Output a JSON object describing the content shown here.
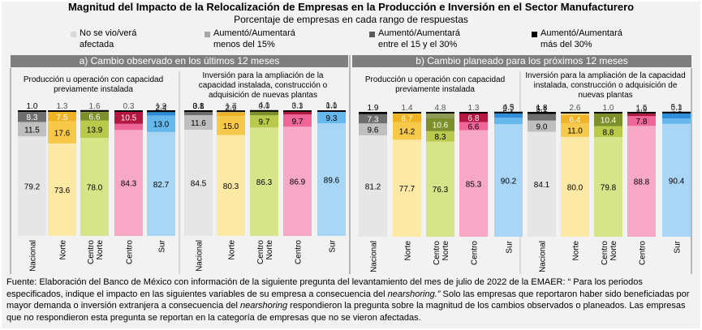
{
  "title": "Magnitud del Impacto de la Relocalización de Empresas en la Producción e Inversión en el Sector Manufacturero",
  "subtitle": "Porcentaje de empresas en cada rango de respuestas",
  "legend": [
    {
      "label": "No se vio/verá\nafectada",
      "color": "#d9d9d9"
    },
    {
      "label": "Aumentó/Aumentará\nmenos del 15%",
      "color": "#a6a6a6"
    },
    {
      "label": "Aumentó/Aumentará\nentre el 15 y el 30%",
      "color": "#595959"
    },
    {
      "label": "Aumentó/Aumentará\nmás del 30%",
      "color": "#000000"
    }
  ],
  "sections": [
    {
      "label": "a) Cambio observado en los últimos 12 meses"
    },
    {
      "label": "b) Cambio planeado para los próximos 12 meses"
    }
  ],
  "colors": {
    "Nacional": [
      "#e6e6e6",
      "#bfbfbf",
      "#6e6e6e",
      "#1a1a1a"
    ],
    "Norte": [
      "#fde9a6",
      "#f6c94a",
      "#f0b323",
      "#f3d27a"
    ],
    "Centro Norte": [
      "#d6e58a",
      "#b8c94b",
      "#7d8f2a",
      "#8c9c55"
    ],
    "Centro": [
      "#f7a8c7",
      "#ef6597",
      "#b3173f",
      "#6e1026"
    ],
    "Sur": [
      "#a9d6f5",
      "#66b7ec",
      "#2e8fd8",
      "#1f6fa8"
    ]
  },
  "chart_data": [
    {
      "type": "bar",
      "stacked": true,
      "title": "Producción u operación con capacidad previamente instalada",
      "categories": [
        "Nacional",
        "Norte",
        "Centro Norte",
        "Centro",
        "Sur"
      ],
      "series": [
        {
          "name": "No se vio/verá afectada",
          "values": [
            79.2,
            73.6,
            78.0,
            84.3,
            82.7
          ]
        },
        {
          "name": "Aumentó/Aumentará menos del 15%",
          "values": [
            11.5,
            17.6,
            13.9,
            4.9,
            13.0
          ]
        },
        {
          "name": "Aumentó/Aumentará entre el 15 y el 30%",
          "values": [
            8.3,
            7.5,
            6.6,
            10.5,
            2.4
          ]
        },
        {
          "name": "Aumentó/Aumentará más del 30%",
          "values": [
            1.0,
            1.3,
            1.6,
            0.3,
            1.9
          ]
        }
      ],
      "ylim": [
        0,
        100
      ]
    },
    {
      "type": "bar",
      "stacked": true,
      "title": "Inversión para la ampliación de la capacidad instalada, construcción o adquisición de nuevas plantas",
      "categories": [
        "Nacional",
        "Norte",
        "Centro Norte",
        "Centro",
        "Sur"
      ],
      "series": [
        {
          "name": "No se vio/verá afectada",
          "values": [
            84.5,
            80.3,
            86.3,
            86.9,
            89.6
          ]
        },
        {
          "name": "Aumentó/Aumentará menos del 15%",
          "values": [
            11.6,
            15.0,
            9.7,
            9.7,
            9.3
          ]
        },
        {
          "name": "Aumentó/Aumentará entre el 15 y el 30%",
          "values": [
            3.1,
            2.9,
            4.1,
            3.1,
            1.1
          ]
        },
        {
          "name": "Aumentó/Aumentará más del 30%",
          "values": [
            0.8,
            1.7,
            0.0,
            0.3,
            0.0
          ]
        }
      ],
      "ylim": [
        0,
        100
      ]
    },
    {
      "type": "bar",
      "stacked": true,
      "title": "Producción u operación con capacidad previamente instalada",
      "categories": [
        "Nacional",
        "Norte",
        "Centro Norte",
        "Centro",
        "Sur"
      ],
      "series": [
        {
          "name": "No se vio/verá afectada",
          "values": [
            81.2,
            77.7,
            76.3,
            85.3,
            90.2
          ]
        },
        {
          "name": "Aumentó/Aumentará menos del 15%",
          "values": [
            9.6,
            14.2,
            8.3,
            6.6,
            5.1
          ]
        },
        {
          "name": "Aumentó/Aumentará entre el 15 y el 30%",
          "values": [
            7.3,
            6.7,
            10.6,
            6.8,
            4.5
          ]
        },
        {
          "name": "Aumentó/Aumentará más del 30%",
          "values": [
            1.9,
            1.4,
            4.8,
            1.3,
            0.3
          ]
        }
      ],
      "ylim": [
        0,
        100
      ]
    },
    {
      "type": "bar",
      "stacked": true,
      "title": "Inversión para la ampliación de la capacidad instalada, construcción o adquisición de nuevas plantas",
      "categories": [
        "Nacional",
        "Norte",
        "Centro Norte",
        "Centro",
        "Sur"
      ],
      "series": [
        {
          "name": "No se vio/verá afectada",
          "values": [
            84.1,
            80.0,
            79.8,
            88.8,
            90.4
          ]
        },
        {
          "name": "Aumentó/Aumentará menos del 15%",
          "values": [
            9.0,
            11.0,
            8.8,
            7.8,
            4.3
          ]
        },
        {
          "name": "Aumentó/Aumentará entre el 15 y el 30%",
          "values": [
            5.1,
            6.4,
            10.4,
            1.9,
            5.1
          ]
        },
        {
          "name": "Aumentó/Aumentará más del 30%",
          "values": [
            1.8,
            2.6,
            1.0,
            1.5,
            0.3
          ]
        }
      ],
      "ylim": [
        0,
        100
      ]
    }
  ],
  "footnote": {
    "p1": "Fuente: Elaboración del Banco de México con información de la siguiente pregunta del levantamiento del mes de julio de 2022 de la EMAER: “ Para los periodos especificados, indique el impacto en las siguientes variables de su empresa a consecuencia del ",
    "em1": "nearshoring.”",
    "p2": " Solo las empresas que reportaron haber sido beneficiadas por mayor demanda o inversión extranjera a consecuencia del ",
    "em2": "nearshoring",
    "p3": " respondieron la pregunta sobre la magnitud de los cambios observados o planeados. Las empresas que no respondieron esta pregunta se reportan en la categoría de empresas que no se vieron afectadas."
  }
}
